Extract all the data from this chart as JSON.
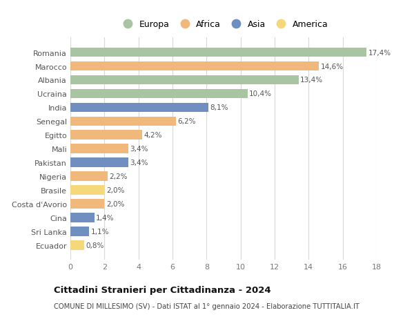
{
  "countries": [
    "Romania",
    "Marocco",
    "Albania",
    "Ucraina",
    "India",
    "Senegal",
    "Egitto",
    "Mali",
    "Pakistan",
    "Nigeria",
    "Brasile",
    "Costa d'Avorio",
    "Cina",
    "Sri Lanka",
    "Ecuador"
  ],
  "values": [
    17.4,
    14.6,
    13.4,
    10.4,
    8.1,
    6.2,
    4.2,
    3.4,
    3.4,
    2.2,
    2.0,
    2.0,
    1.4,
    1.1,
    0.8
  ],
  "labels": [
    "17,4%",
    "14,6%",
    "13,4%",
    "10,4%",
    "8,1%",
    "6,2%",
    "4,2%",
    "3,4%",
    "3,4%",
    "2,2%",
    "2,0%",
    "2,0%",
    "1,4%",
    "1,1%",
    "0,8%"
  ],
  "continents": [
    "Europa",
    "Africa",
    "Europa",
    "Europa",
    "Asia",
    "Africa",
    "Africa",
    "Africa",
    "Asia",
    "Africa",
    "America",
    "Africa",
    "Asia",
    "Asia",
    "America"
  ],
  "colors": {
    "Europa": "#a8c4a0",
    "Africa": "#f0b87a",
    "Asia": "#6e8fbf",
    "America": "#f5d87a"
  },
  "legend_order": [
    "Europa",
    "Africa",
    "Asia",
    "America"
  ],
  "title": "Cittadini Stranieri per Cittadinanza - 2024",
  "subtitle": "COMUNE DI MILLESIMO (SV) - Dati ISTAT al 1° gennaio 2024 - Elaborazione TUTTITALIA.IT",
  "xlim": [
    0,
    18
  ],
  "xticks": [
    0,
    2,
    4,
    6,
    8,
    10,
    12,
    14,
    16,
    18
  ],
  "background_color": "#ffffff",
  "grid_color": "#d8d8d8",
  "bar_height": 0.68,
  "label_fontsize": 7.5,
  "ytick_fontsize": 8.0,
  "xtick_fontsize": 8.0,
  "title_fontsize": 9.5,
  "subtitle_fontsize": 7.2,
  "legend_fontsize": 9.0
}
